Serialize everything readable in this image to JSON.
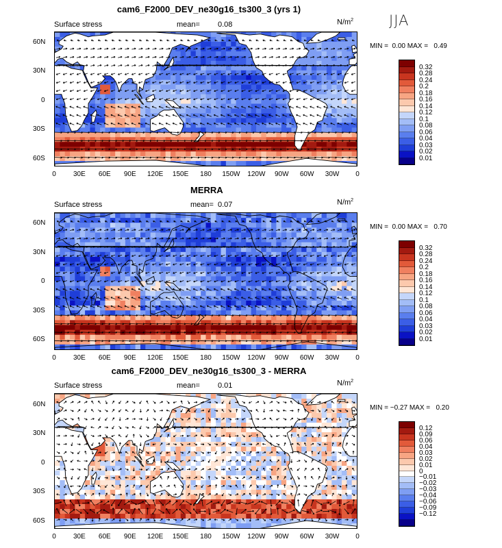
{
  "season": "JJA",
  "var_label": "Surface stress",
  "units_base": "N/m",
  "units_exp": "2",
  "mean_label": "mean=",
  "min_label": "MIN =",
  "max_label": "MAX =",
  "lat_labels": [
    "60N",
    "30N",
    "0",
    "30S",
    "60S"
  ],
  "lon_labels": [
    "0",
    "30E",
    "60E",
    "90E",
    "120E",
    "150E",
    "180",
    "150W",
    "120W",
    "90W",
    "60W",
    "30W",
    "0"
  ],
  "colors": {
    "abs": [
      "#08008a",
      "#0a12c4",
      "#1f3ed8",
      "#3b5ee6",
      "#5a7eee",
      "#7f9ef3",
      "#a3bdf7",
      "#c4d6fa",
      "#ffe6d6",
      "#fcc9ad",
      "#f7a583",
      "#f08060",
      "#e25a3a",
      "#c8351f",
      "#a31a10",
      "#7d0000"
    ],
    "diff": [
      "#08008a",
      "#0a12c4",
      "#1f3ed8",
      "#3b5ee6",
      "#5a7eee",
      "#7f9ef3",
      "#a3bdf7",
      "#c4d6fa",
      "#ffffff",
      "#ffe6d6",
      "#fcc9ad",
      "#f7a583",
      "#f08060",
      "#e25a3a",
      "#c8351f",
      "#a31a10",
      "#7d0000"
    ]
  },
  "panels": [
    {
      "title": "cam6_F2000_DEV_ne30g16_ts300_3 (yrs 1)",
      "mean": "0.08",
      "min": "0.00",
      "max": "0.49",
      "cb_labels": [
        "0.32",
        "0.28",
        "0.24",
        "0.2",
        "0.18",
        "0.16",
        "0.14",
        "0.12",
        "0.1",
        "0.08",
        "0.06",
        "0.04",
        "0.03",
        "0.02",
        "0.01"
      ]
    },
    {
      "title": "MERRA",
      "mean": "0.07",
      "min": "0.00",
      "max": "0.70",
      "cb_labels": [
        "0.32",
        "0.28",
        "0.24",
        "0.2",
        "0.18",
        "0.16",
        "0.14",
        "0.12",
        "0.1",
        "0.08",
        "0.06",
        "0.04",
        "0.03",
        "0.02",
        "0.01"
      ]
    },
    {
      "title": "cam6_F2000_DEV_ne30g16_ts300_3 - MERRA",
      "mean": "0.01",
      "min": "−0.27",
      "max": "0.20",
      "cb_labels": [
        "0.12",
        "0.09",
        "0.06",
        "0.04",
        "0.03",
        "0.02",
        "0.01",
        "0",
        "−0.01",
        "−0.02",
        "−0.03",
        "−0.04",
        "−0.06",
        "−0.09",
        "−0.12"
      ]
    }
  ]
}
